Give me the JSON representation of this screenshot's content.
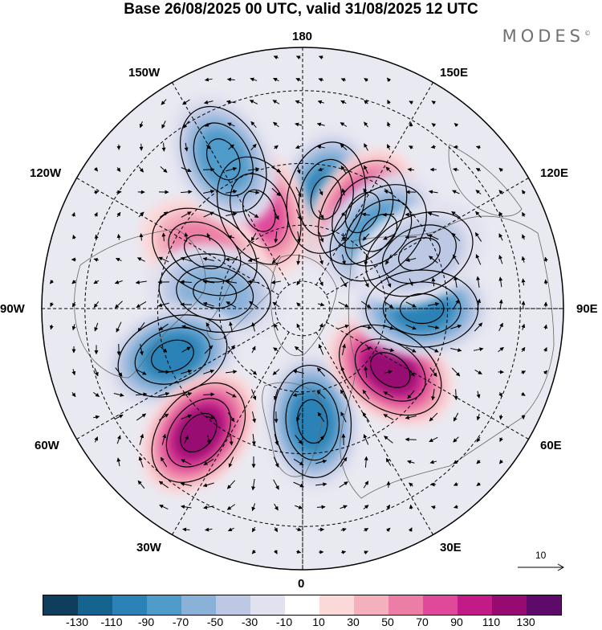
{
  "title": "Base 26/08/2025 00 UTC, valid 31/08/2025 12 UTC",
  "brand": "MODES",
  "brand_mark": "©",
  "longitudes": {
    "lon_180": "180",
    "lon_150E": "150E",
    "lon_120E": "120E",
    "lon_90E": "90E",
    "lon_60E": "60E",
    "lon_30E": "30E",
    "lon_0": "0",
    "lon_30W": "30W",
    "lon_60W": "60W",
    "lon_90W": "90W",
    "lon_120W": "120W",
    "lon_150W": "150W"
  },
  "colorbar": {
    "colors": [
      "#0e3e5c",
      "#14648f",
      "#2a82b6",
      "#4f9bca",
      "#8ab2d9",
      "#bcc8e4",
      "#e1e1ef",
      "#ffffff",
      "#fbd9d9",
      "#f4b0bd",
      "#ec7ea5",
      "#e0489a",
      "#c21a86",
      "#970a72",
      "#5d0a6a"
    ],
    "labels": [
      "-130",
      "-110",
      "-90",
      "-70",
      "-50",
      "-30",
      "-10",
      "10",
      "30",
      "50",
      "70",
      "90",
      "110",
      "130"
    ]
  },
  "reference_vector": "10",
  "anomaly_centres": [
    {
      "lon": 168,
      "lat": 50,
      "value": -100
    },
    {
      "lon": 148,
      "lat": 50,
      "value": 95
    },
    {
      "lon": 135,
      "lat": 52,
      "value": -70
    },
    {
      "lon": -156,
      "lat": 52,
      "value": 80
    },
    {
      "lon": -120,
      "lat": 50,
      "value": 65
    },
    {
      "lon": -152,
      "lat": 33,
      "value": -70
    },
    {
      "lon": -100,
      "lat": 58,
      "value": -55
    },
    {
      "lon": -70,
      "lat": 42,
      "value": -90
    },
    {
      "lon": -40,
      "lat": 35,
      "value": 110
    },
    {
      "lon": 5,
      "lat": 50,
      "value": -100
    },
    {
      "lon": 55,
      "lat": 52,
      "value": 125
    },
    {
      "lon": 90,
      "lat": 48,
      "value": -100
    },
    {
      "lon": 115,
      "lat": 45,
      "value": -30
    }
  ]
}
